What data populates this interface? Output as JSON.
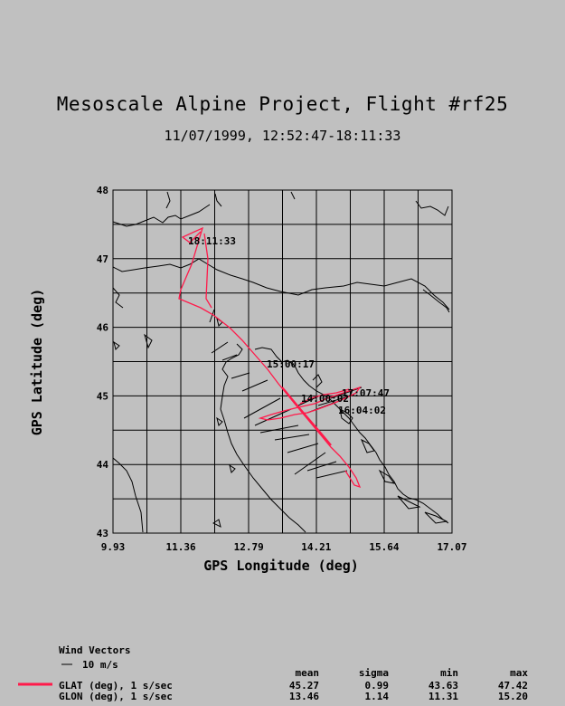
{
  "title": "Mesoscale Alpine Project, Flight #rf25",
  "subtitle": "11/07/1999, 12:52:47-18:11:33",
  "axes": {
    "xlabel": "GPS Longitude (deg)",
    "ylabel": "GPS Latitude (deg)",
    "xticks": [
      "9.93",
      "11.36",
      "12.79",
      "14.21",
      "15.64",
      "17.07"
    ],
    "yticks": [
      "43",
      "44",
      "45",
      "46",
      "47",
      "48"
    ],
    "xlim": [
      9.93,
      17.07
    ],
    "ylim": [
      43,
      48
    ]
  },
  "time_labels": [
    "18:11:33",
    "15:00:17",
    "17:07:47",
    "16:04:02",
    "14:00:02"
  ],
  "legend": {
    "wind_title": "Wind Vectors",
    "wind_scale": "10 m/s",
    "stat_headers": [
      "mean",
      "sigma",
      "min",
      "max"
    ],
    "rows": [
      {
        "label": "GLAT (deg), 1 s/sec",
        "mean": "45.27",
        "sigma": "0.99",
        "min": "43.63",
        "max": "47.42"
      },
      {
        "label": "GLON (deg), 1 s/sec",
        "mean": "13.46",
        "sigma": "1.14",
        "min": "11.31",
        "max": "15.20"
      }
    ]
  },
  "colors": {
    "track": "#ff1a4a",
    "background": "#c0c0c0",
    "coast": "#000000"
  }
}
